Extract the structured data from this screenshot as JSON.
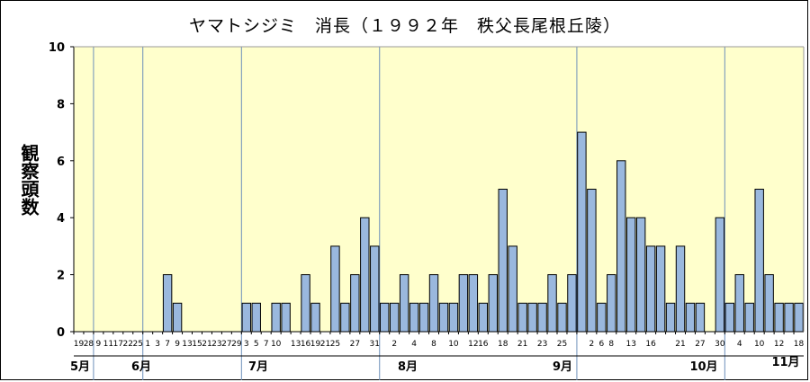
{
  "title": "ヤマトシジミ　消長（１９９２年　秩父長尾根丘陵）",
  "chart_data": {
    "type": "bar",
    "title": "ヤマトシジミ　消長（１９９２年　秩父長尾根丘陵）",
    "xlabel": "",
    "ylabel": "観察頭数",
    "ylim": [
      0,
      10
    ],
    "yticks": [
      0,
      2,
      4,
      6,
      8,
      10
    ],
    "grid": false,
    "bar_color": "#9ab8de",
    "plot_background": "#ffffcc",
    "categories": [
      "5/19",
      "5/28",
      "6/9",
      "6/11",
      "6/17",
      "6/22",
      "6/25",
      "7/1",
      "7/3",
      "7/7",
      "7/9",
      "7/13",
      "7/15",
      "7/21",
      "7/23",
      "7/27",
      "7/29",
      "8/3",
      "8/5",
      "8/7",
      "8/10",
      "8/12",
      "8/13",
      "8/16",
      "8/19",
      "8/21",
      "8/25",
      "8/26",
      "8/27",
      "8/28",
      "8/31",
      "9/1",
      "9/2",
      "9/3",
      "9/4",
      "9/7",
      "9/8",
      "9/10",
      "9/11",
      "9/12",
      "9/15",
      "9/16",
      "9/17",
      "9/18",
      "9/19",
      "9/21",
      "9/22",
      "9/23",
      "9/24",
      "9/25",
      "9/26",
      "9/30",
      "10/2",
      "10/6",
      "10/7",
      "10/8",
      "10/12",
      "10/13",
      "10/14",
      "10/16",
      "10/17",
      "10/19",
      "10/21",
      "10/27",
      "10/29",
      "10/30",
      "11/4",
      "11/7",
      "11/10",
      "11/11",
      "11/12",
      "11/14",
      "11/18",
      "11/20"
    ],
    "values": [
      0,
      0,
      0,
      0,
      0,
      0,
      0,
      0,
      0,
      2,
      1,
      0,
      0,
      0,
      0,
      0,
      0,
      1,
      1,
      0,
      1,
      1,
      0,
      2,
      1,
      0,
      3,
      1,
      2,
      4,
      3,
      1,
      1,
      2,
      1,
      1,
      2,
      1,
      1,
      2,
      2,
      1,
      2,
      5,
      3,
      1,
      1,
      1,
      2,
      1,
      2,
      7,
      5,
      1,
      2,
      6,
      4,
      4,
      3,
      3,
      1,
      3,
      1,
      1,
      0,
      4,
      1,
      2,
      1,
      5,
      2,
      1,
      1,
      1
    ],
    "x_tick_labels": [
      "19",
      "28",
      "9",
      "11",
      "17",
      "22",
      "25",
      "1",
      "3",
      "7",
      "9",
      "13",
      "15",
      "21",
      "23",
      "27",
      "29",
      "3",
      "5",
      "7",
      "10",
      "13",
      "16",
      "19",
      "21",
      "25",
      "27",
      "31",
      "2",
      "4",
      "8",
      "10",
      "12",
      "16",
      "18",
      "21",
      "23",
      "25",
      "2",
      "6",
      "8",
      "13",
      "16",
      "21",
      "27",
      "30",
      "4",
      "10",
      "12",
      "18"
    ],
    "months": [
      "5月",
      "6月",
      "7月",
      "8月",
      "9月",
      "10月",
      "11月"
    ]
  }
}
